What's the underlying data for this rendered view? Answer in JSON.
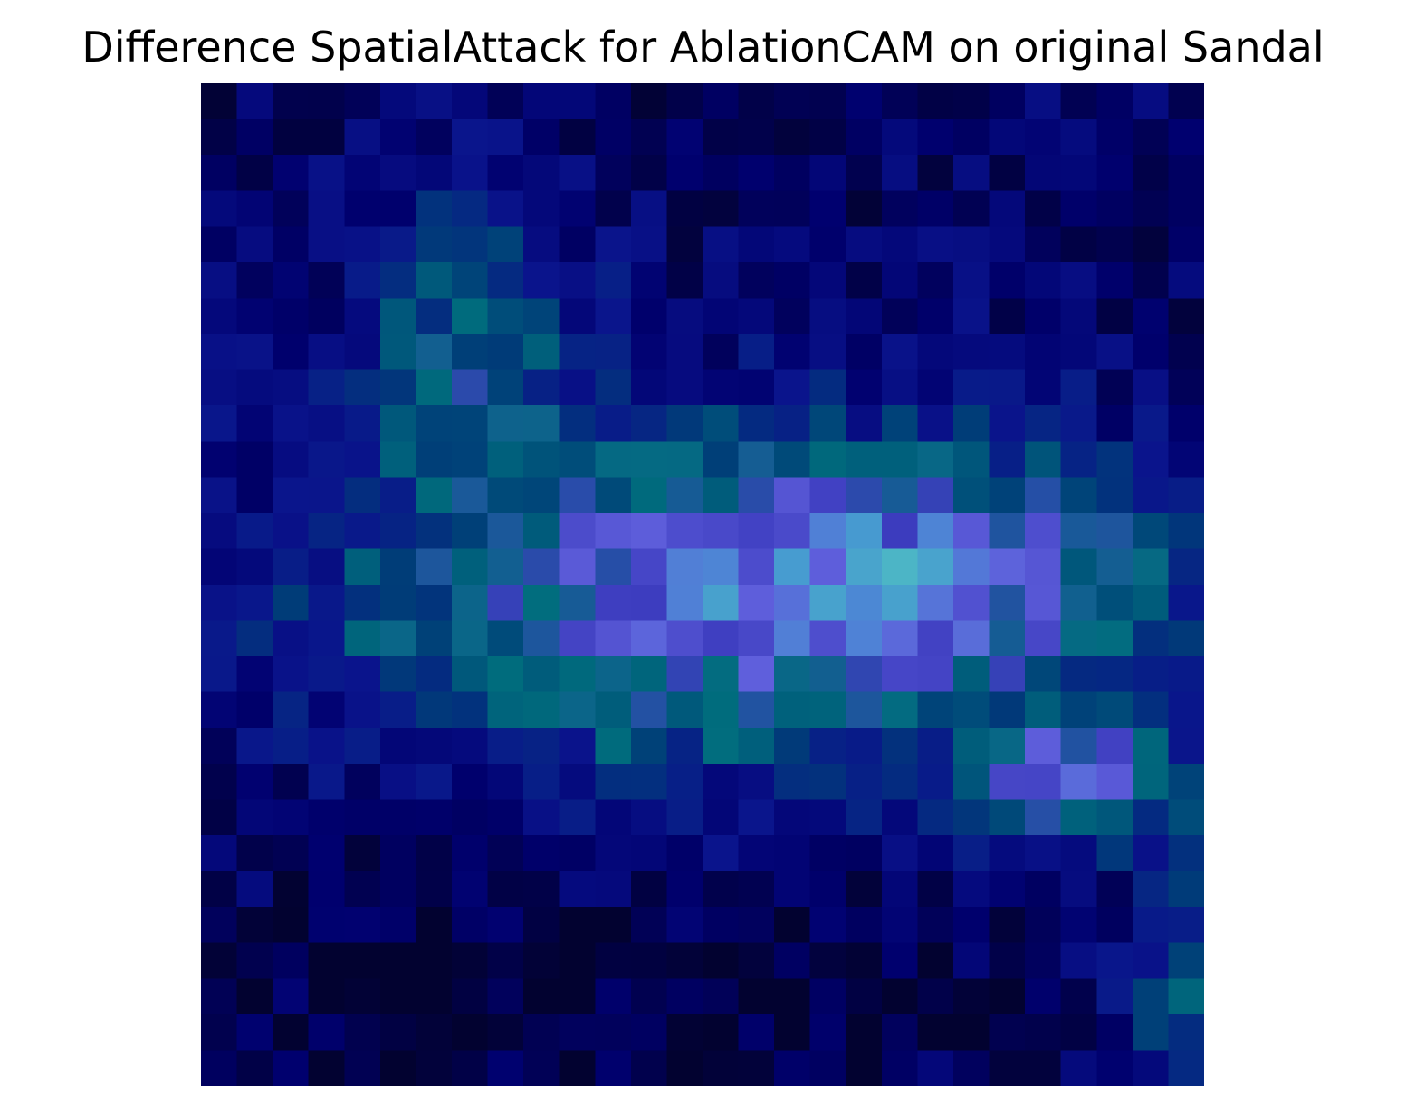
{
  "title": "Difference SpatialAttack for AblationCAM on original Sandal",
  "image": {
    "description_colors": {
      "background": "#ffffff",
      "dominant": "#00006e",
      "cyan": "#00787a",
      "light_cyan": "#8af4ee",
      "red": "#cc5349",
      "brown": "#b06a30",
      "yellow_green": "#c6cf5a"
    },
    "grid_size": 28
  }
}
